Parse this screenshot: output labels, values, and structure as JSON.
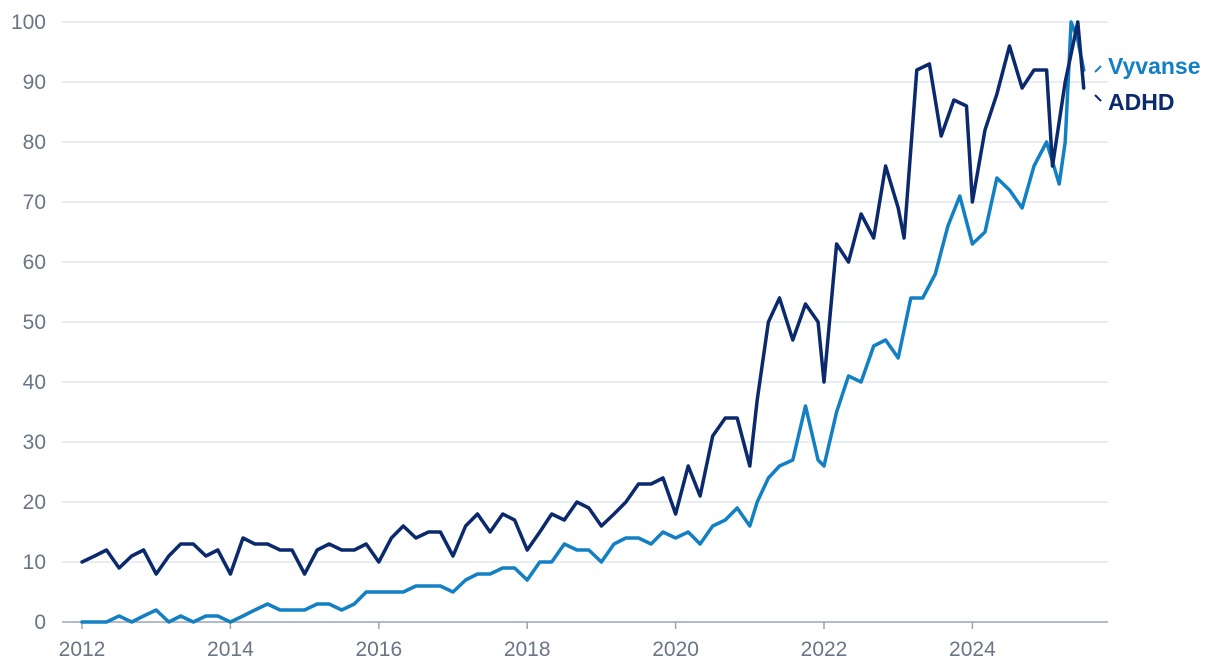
{
  "chart_data": {
    "type": "line",
    "title": "",
    "xlabel": "",
    "ylabel": "",
    "xlim": [
      2012,
      2025.6
    ],
    "ylim": [
      0,
      100
    ],
    "grid": true,
    "x_ticks": [
      "2012",
      "2014",
      "2016",
      "2018",
      "2020",
      "2022",
      "2024"
    ],
    "y_ticks": [
      "0",
      "10",
      "20",
      "30",
      "40",
      "50",
      "60",
      "70",
      "80",
      "90",
      "100"
    ],
    "legend_position": "right",
    "series": [
      {
        "name": "ADHD",
        "color": "#0b2a6e",
        "x": [
          2012.0,
          2012.17,
          2012.33,
          2012.5,
          2012.67,
          2012.83,
          2013.0,
          2013.17,
          2013.33,
          2013.5,
          2013.67,
          2013.83,
          2014.0,
          2014.17,
          2014.33,
          2014.5,
          2014.67,
          2014.83,
          2015.0,
          2015.17,
          2015.33,
          2015.5,
          2015.67,
          2015.83,
          2016.0,
          2016.17,
          2016.33,
          2016.5,
          2016.67,
          2016.83,
          2017.0,
          2017.17,
          2017.33,
          2017.5,
          2017.67,
          2017.83,
          2018.0,
          2018.17,
          2018.33,
          2018.5,
          2018.67,
          2018.83,
          2019.0,
          2019.17,
          2019.33,
          2019.5,
          2019.67,
          2019.83,
          2020.0,
          2020.17,
          2020.33,
          2020.5,
          2020.67,
          2020.83,
          2021.0,
          2021.1,
          2021.25,
          2021.4,
          2021.58,
          2021.75,
          2021.92,
          2022.0,
          2022.17,
          2022.33,
          2022.5,
          2022.67,
          2022.83,
          2023.0,
          2023.08,
          2023.25,
          2023.42,
          2023.58,
          2023.75,
          2023.92,
          2024.0,
          2024.17,
          2024.33,
          2024.5,
          2024.67,
          2024.83,
          2025.0,
          2025.08,
          2025.25,
          2025.42,
          2025.5
        ],
        "values": [
          10,
          11,
          12,
          9,
          11,
          12,
          8,
          11,
          13,
          13,
          11,
          12,
          8,
          14,
          13,
          13,
          12,
          12,
          8,
          12,
          13,
          12,
          12,
          13,
          10,
          14,
          16,
          14,
          15,
          15,
          11,
          16,
          18,
          15,
          18,
          17,
          12,
          15,
          18,
          17,
          20,
          19,
          16,
          18,
          20,
          23,
          23,
          24,
          18,
          26,
          21,
          31,
          34,
          34,
          26,
          37,
          50,
          54,
          47,
          53,
          50,
          40,
          63,
          60,
          68,
          64,
          76,
          69,
          64,
          92,
          93,
          81,
          87,
          86,
          70,
          82,
          88,
          96,
          89,
          92,
          92,
          76,
          90,
          100,
          89
        ]
      },
      {
        "name": "Vyvanse",
        "color": "#1380c4",
        "x": [
          2012.0,
          2012.17,
          2012.33,
          2012.5,
          2012.67,
          2012.83,
          2013.0,
          2013.17,
          2013.33,
          2013.5,
          2013.67,
          2013.83,
          2014.0,
          2014.17,
          2014.33,
          2014.5,
          2014.67,
          2014.83,
          2015.0,
          2015.17,
          2015.33,
          2015.5,
          2015.67,
          2015.83,
          2016.0,
          2016.17,
          2016.33,
          2016.5,
          2016.67,
          2016.83,
          2017.0,
          2017.17,
          2017.33,
          2017.5,
          2017.67,
          2017.83,
          2018.0,
          2018.17,
          2018.33,
          2018.5,
          2018.67,
          2018.83,
          2019.0,
          2019.17,
          2019.33,
          2019.5,
          2019.67,
          2019.83,
          2020.0,
          2020.17,
          2020.33,
          2020.5,
          2020.67,
          2020.83,
          2021.0,
          2021.1,
          2021.25,
          2021.4,
          2021.58,
          2021.75,
          2021.92,
          2022.0,
          2022.17,
          2022.33,
          2022.5,
          2022.67,
          2022.83,
          2023.0,
          2023.17,
          2023.33,
          2023.5,
          2023.67,
          2023.83,
          2024.0,
          2024.17,
          2024.33,
          2024.5,
          2024.67,
          2024.83,
          2025.0,
          2025.17,
          2025.25,
          2025.33,
          2025.42,
          2025.5
        ],
        "values": [
          0,
          0,
          0,
          1,
          0,
          1,
          2,
          0,
          1,
          0,
          1,
          1,
          0,
          1,
          2,
          3,
          2,
          2,
          2,
          3,
          3,
          2,
          3,
          5,
          5,
          5,
          5,
          6,
          6,
          6,
          5,
          7,
          8,
          8,
          9,
          9,
          7,
          10,
          10,
          13,
          12,
          12,
          10,
          13,
          14,
          14,
          13,
          15,
          14,
          15,
          13,
          16,
          17,
          19,
          16,
          20,
          24,
          26,
          27,
          36,
          27,
          26,
          35,
          41,
          40,
          46,
          47,
          44,
          54,
          54,
          58,
          66,
          71,
          63,
          65,
          74,
          72,
          69,
          76,
          80,
          73,
          80,
          100,
          97,
          92
        ]
      }
    ]
  }
}
